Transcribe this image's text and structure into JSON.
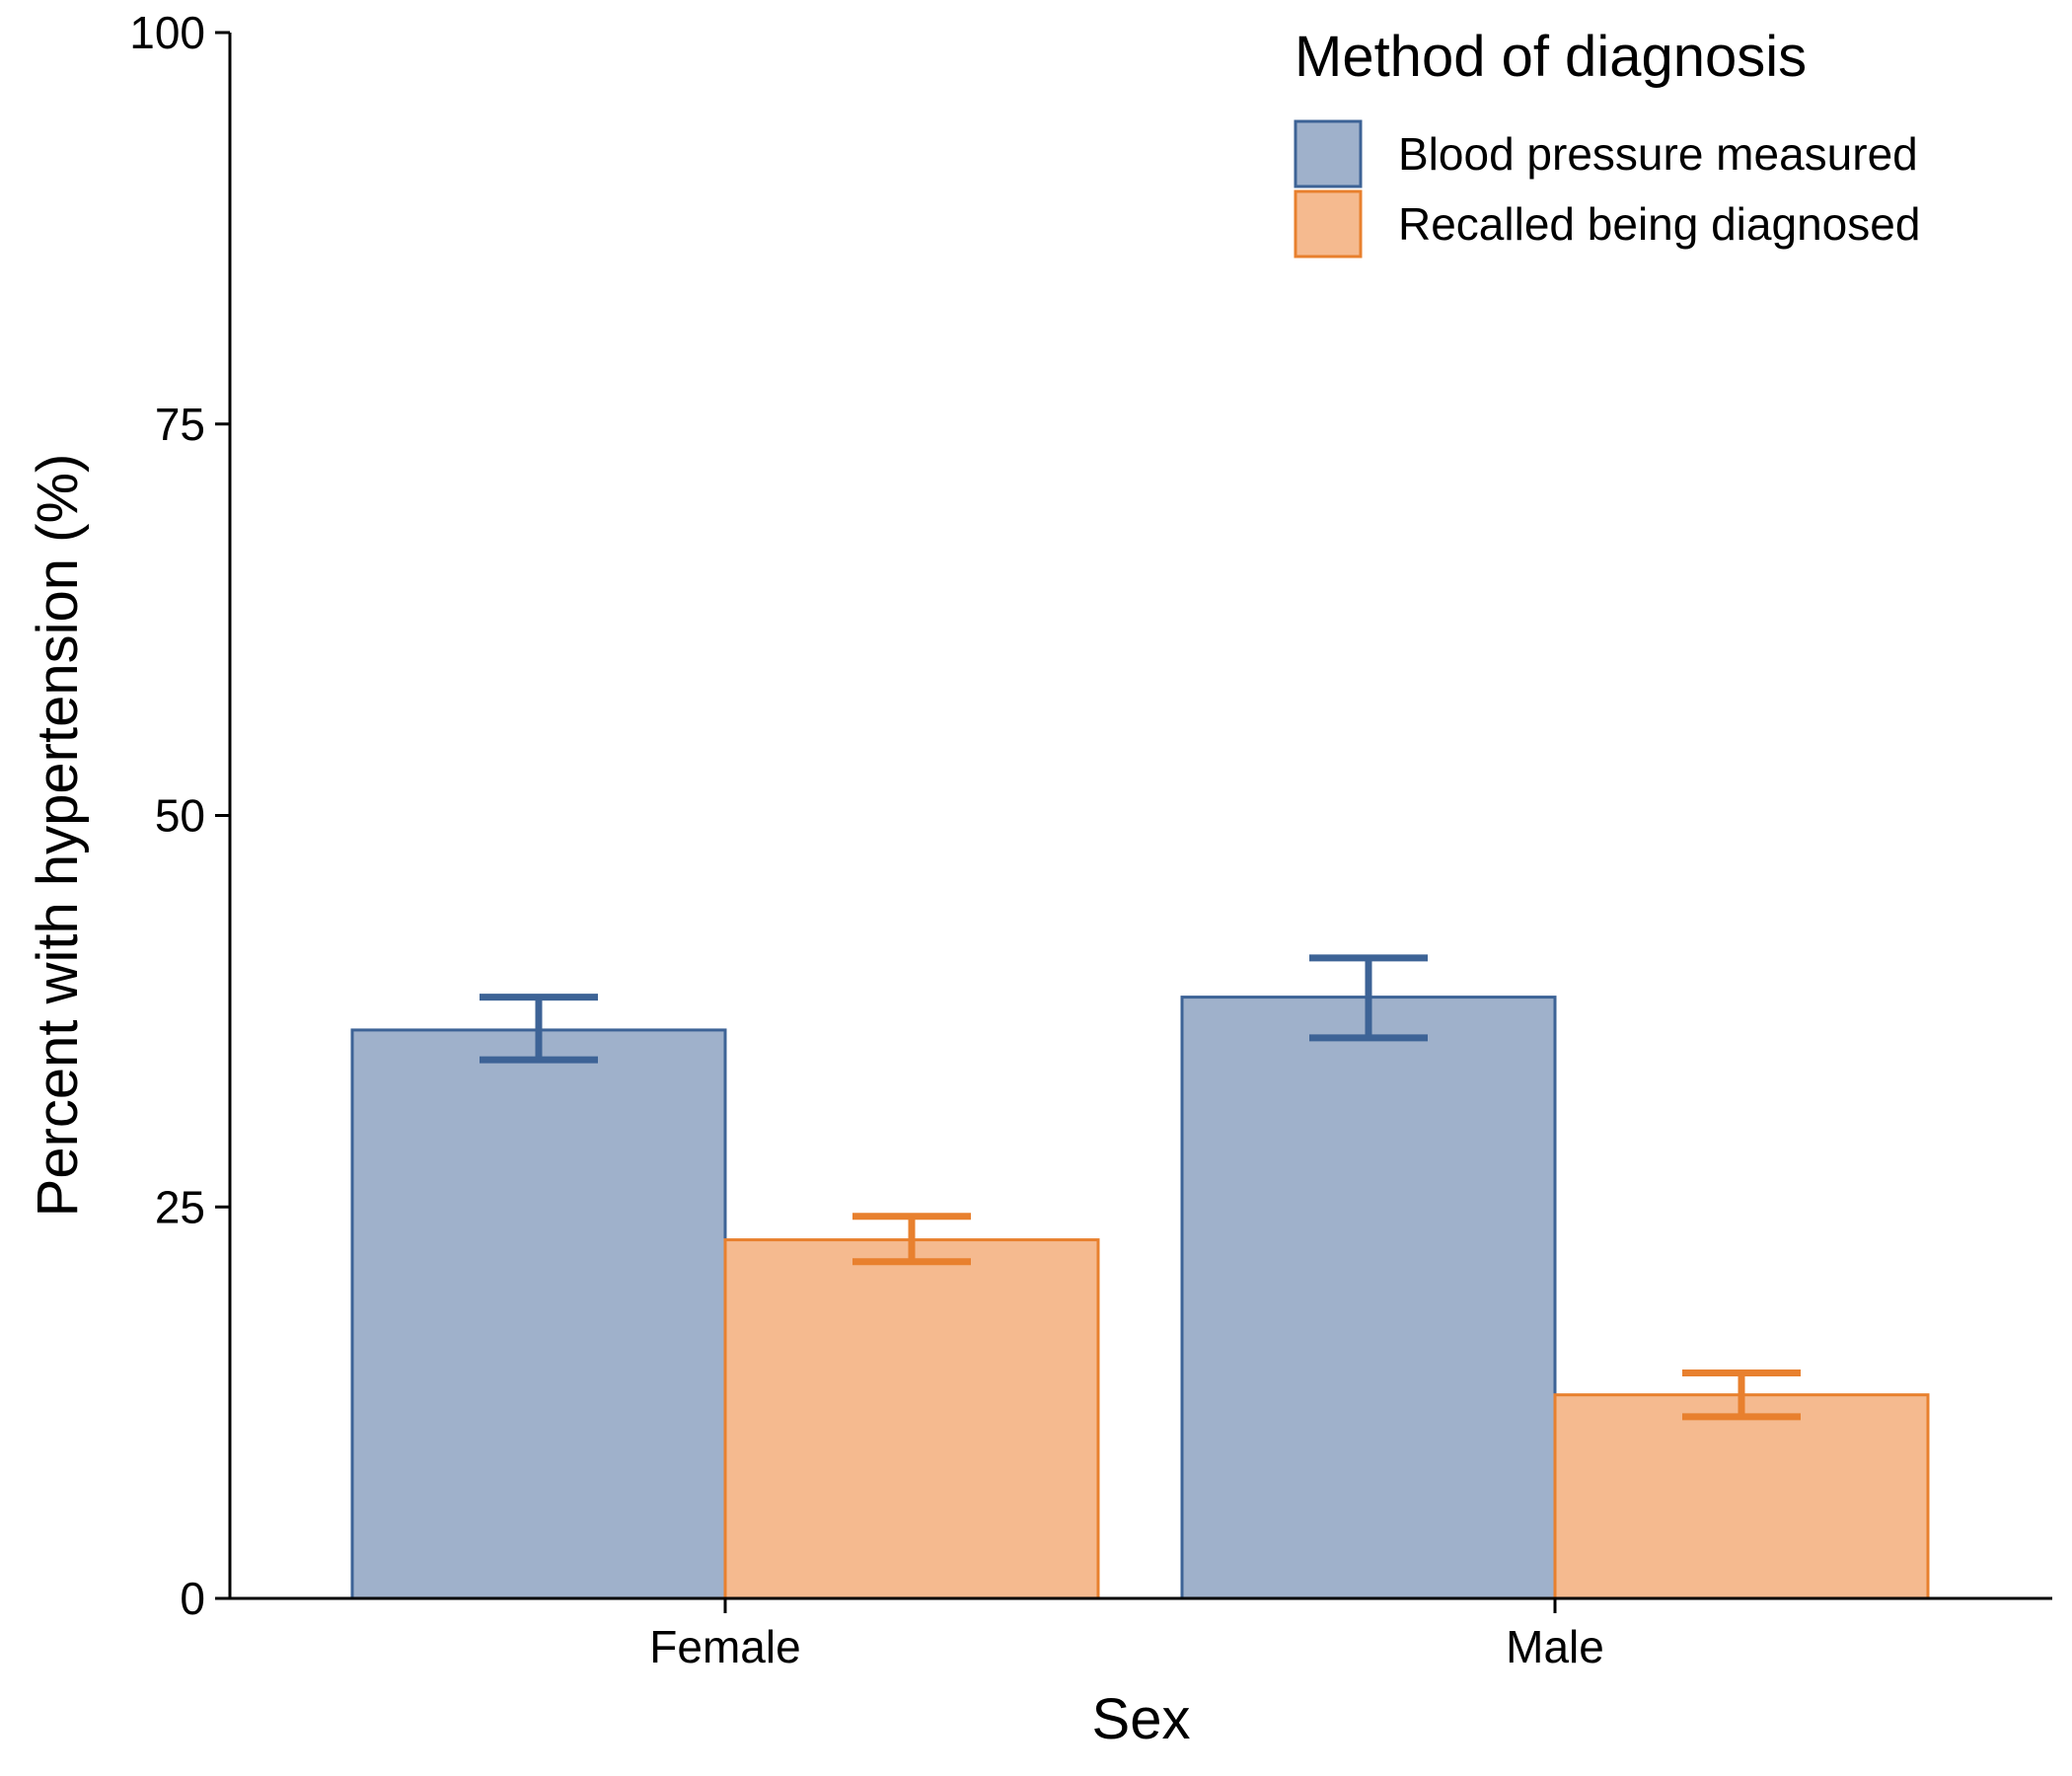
{
  "chart_data": {
    "type": "bar",
    "categories": [
      "Female",
      "Male"
    ],
    "series": [
      {
        "name": "Blood pressure measured",
        "values": [
          36.3,
          38.4
        ],
        "error_low": [
          34.4,
          35.8
        ],
        "error_high": [
          38.4,
          40.9
        ],
        "stroke_color": "#3d6396",
        "fill_color": "#9fb1cb"
      },
      {
        "name": "Recalled being diagnosed",
        "values": [
          22.9,
          13.0
        ],
        "error_low": [
          21.5,
          11.6
        ],
        "error_high": [
          24.4,
          14.4
        ],
        "stroke_color": "#e8802e",
        "fill_color": "#f5ba8f"
      }
    ],
    "xlabel": "Sex",
    "ylabel": "Percent with hypertension (%)",
    "ylim": [
      0,
      100
    ],
    "yticks": [
      0,
      25,
      50,
      75,
      100
    ],
    "ytick_labels": [
      "0",
      "25",
      "50",
      "75",
      "100"
    ],
    "grid": false,
    "legend": {
      "title": "Method of diagnosis",
      "position": "top-right"
    }
  }
}
